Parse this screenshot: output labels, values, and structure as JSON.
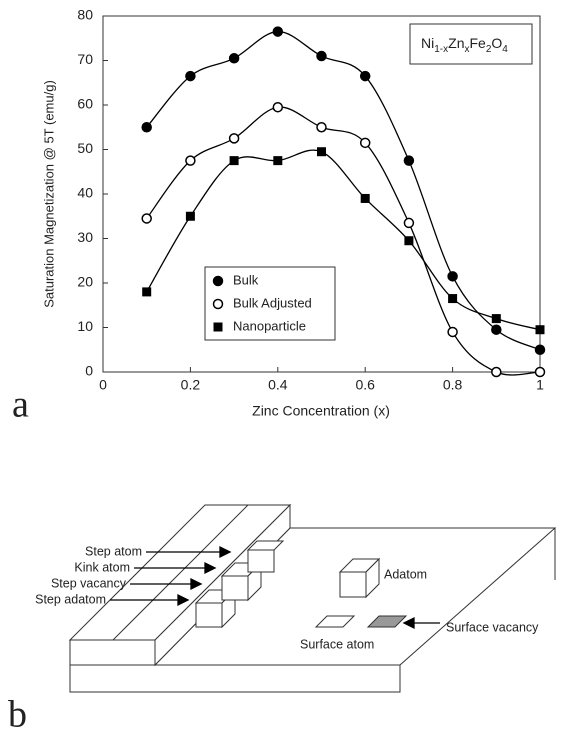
{
  "chart_data": {
    "type": "line",
    "x_label": "Zinc Concentration (x)",
    "y_label": "Saturation Magnetization @ 5T (emu/g)",
    "annotation": [
      "Ni",
      "1-x",
      "Zn",
      "x",
      "Fe",
      "2",
      "O",
      "4"
    ],
    "x": [
      0.1,
      0.2,
      0.3,
      0.4,
      0.5,
      0.6,
      0.7,
      0.8,
      0.9,
      1
    ],
    "series": [
      {
        "name": "Bulk",
        "color": "#000000",
        "marker": "circle",
        "values": [
          55,
          66.5,
          70.5,
          76.5,
          71,
          66.5,
          47.5,
          21.5,
          9.5,
          5
        ]
      },
      {
        "name": "Bulk Adjusted",
        "color": "#000000",
        "marker": "open-circle",
        "values": [
          34.5,
          47.5,
          52.5,
          59.5,
          55,
          51.5,
          33.5,
          9,
          0,
          0
        ]
      },
      {
        "name": "Nanoparticle",
        "color": "#000000",
        "marker": "square",
        "values": [
          18,
          35,
          47.5,
          47.5,
          49.5,
          39,
          29.5,
          16.5,
          12,
          9.5
        ]
      }
    ],
    "xlim": [
      0,
      1
    ],
    "xticks": [
      0,
      0.2,
      0.4,
      0.6,
      0.8,
      1
    ],
    "ylim": [
      0,
      80
    ],
    "yticks": [
      0,
      10,
      20,
      30,
      40,
      50,
      60,
      70,
      80
    ],
    "grid": false,
    "legend": "lower-left"
  },
  "panel_labels": [
    "a",
    "b"
  ],
  "diagram": {
    "labels": [
      "Step atom",
      "Kink atom",
      "Step vacancy",
      "Step adatom",
      "Adatom",
      "Surface atom",
      "Surface vacancy"
    ]
  }
}
